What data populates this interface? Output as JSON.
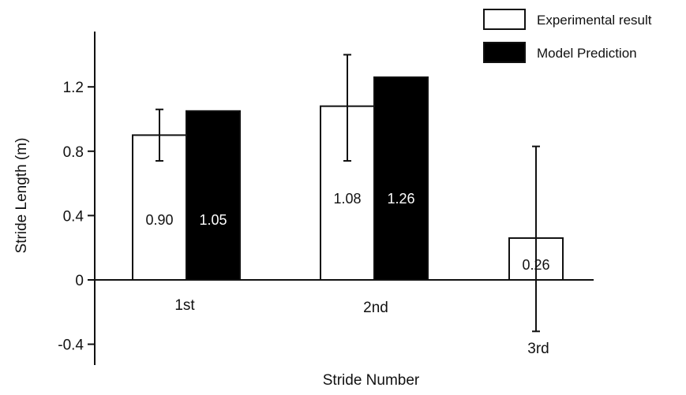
{
  "chart_data": {
    "type": "bar",
    "title": "",
    "xlabel": "Stride Number",
    "ylabel": "Stride Length (m)",
    "ylim": [
      -0.5,
      1.5
    ],
    "yticks": [
      -0.4,
      0,
      0.4,
      0.8,
      1.2
    ],
    "ytick_labels": [
      "-0.4",
      "0",
      "0.4",
      "0.8",
      "1.2"
    ],
    "categories": [
      "1st",
      "2nd",
      "3rd"
    ],
    "series": [
      {
        "name": "Experimental result",
        "fill": "#ffffff",
        "values": [
          0.9,
          1.08,
          0.26
        ],
        "error_low": [
          0.74,
          0.74,
          -0.32
        ],
        "error_high": [
          1.06,
          1.4,
          0.83
        ],
        "labels": [
          "0.90",
          "1.08",
          "0.26"
        ]
      },
      {
        "name": "Model Prediction",
        "fill": "#000000",
        "values": [
          1.05,
          1.26,
          null
        ],
        "labels": [
          "1.05",
          "1.26",
          ""
        ]
      }
    ],
    "legend_position": "top-right",
    "grid": false
  }
}
